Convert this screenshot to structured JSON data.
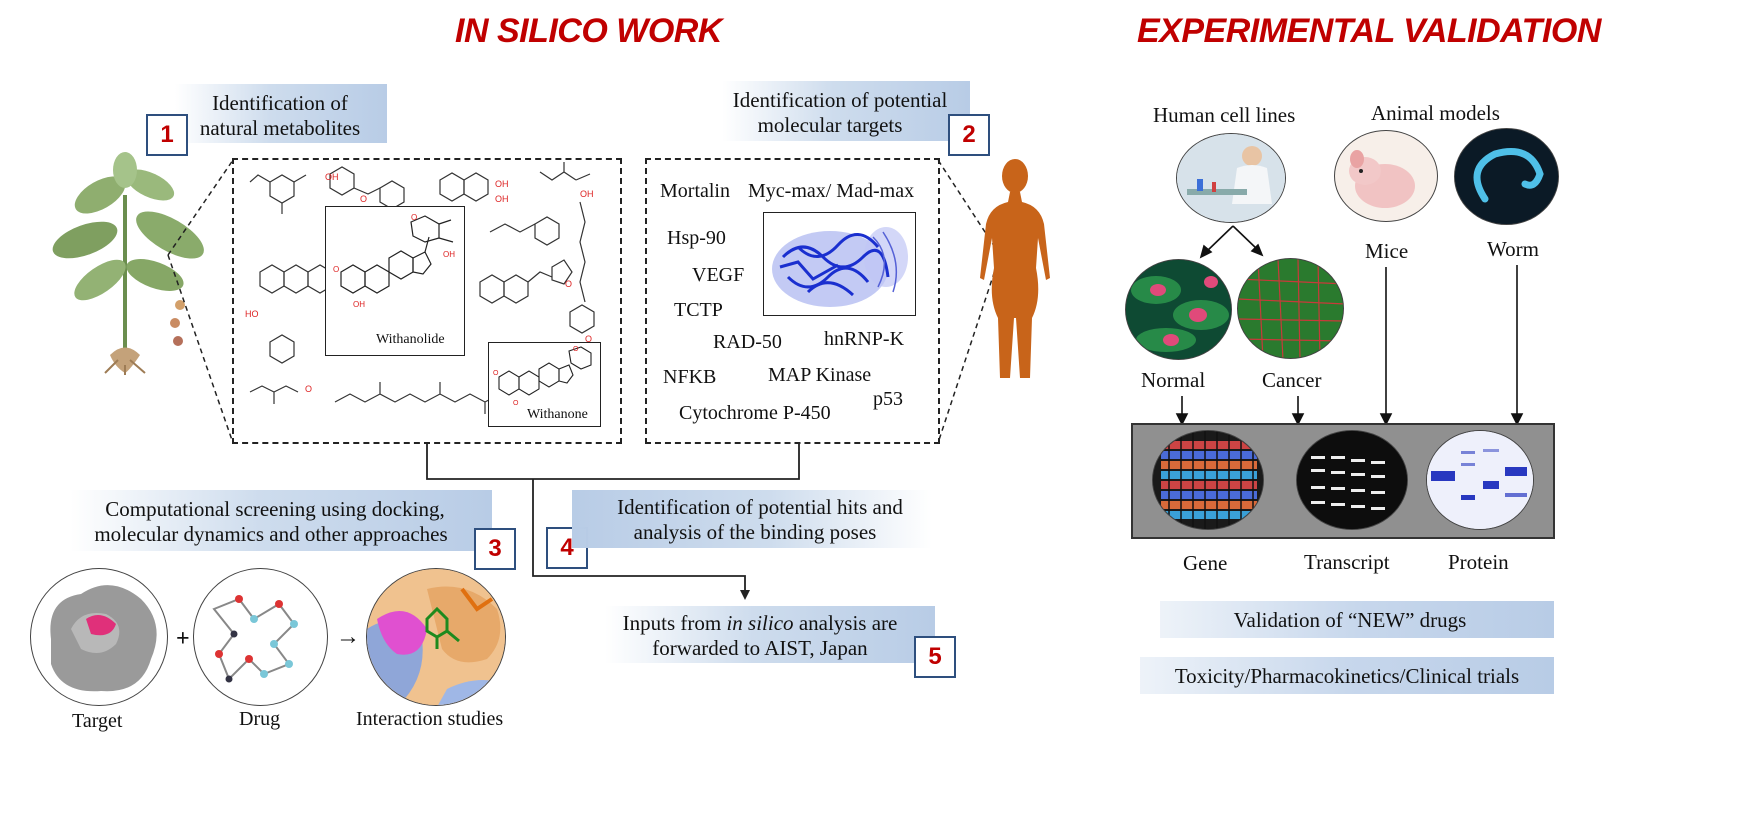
{
  "titles": {
    "in_silico": "IN SILICO WORK",
    "experimental": "EXPERIMENTAL VALIDATION"
  },
  "steps": {
    "s1": {
      "number": "1",
      "line1": "Identification of",
      "line2": "natural metabolites"
    },
    "s2": {
      "number": "2",
      "line1": "Identification of potential",
      "line2": "molecular targets"
    },
    "s3": {
      "number": "3",
      "line1": "Computational screening using docking,",
      "line2": "molecular dynamics and other approaches"
    },
    "s4": {
      "number": "4",
      "line1": "Identification of potential hits and",
      "line2": "analysis of the binding poses"
    },
    "s5": {
      "number": "5",
      "line1_pre": "Inputs from ",
      "line1_em": "in silico",
      "line1_post": " analysis are",
      "line2": "forwarded to AIST, Japan"
    }
  },
  "molecules": {
    "withanolide": "Withanolide",
    "withanone": "Withanone"
  },
  "targets": [
    "Mortalin",
    "Myc-max/ Mad-max",
    "Hsp-90",
    "VEGF",
    "TCTP",
    "RAD-50",
    "hnRNP-K",
    "NFKB",
    "MAP Kinase",
    "Cytochrome P-450",
    "p53"
  ],
  "screening": {
    "target": "Target",
    "drug": "Drug",
    "interaction": "Interaction studies",
    "plus": "+",
    "arrow": "→"
  },
  "validation": {
    "human_cells": "Human cell lines",
    "animal_models": "Animal models",
    "mice": "Mice",
    "worm": "Worm",
    "normal": "Normal",
    "cancer": "Cancer",
    "gene": "Gene",
    "transcript": "Transcript",
    "protein": "Protein",
    "validation_new": "Validation of “NEW” drugs",
    "toxicity": "Toxicity/Pharmacokinetics/Clinical trials"
  },
  "colors": {
    "title_red": "#c00000",
    "box_border": "#2e4f7e",
    "band_blue": "#b8cce6",
    "silhouette": "#c8641a"
  }
}
